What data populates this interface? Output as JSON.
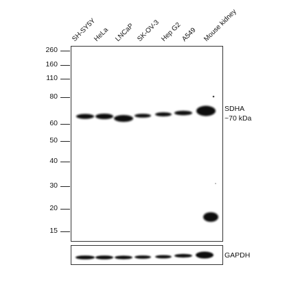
{
  "lanes": [
    "SH-SY5Y",
    "HeLa",
    "LNCaP",
    "SK-OV-3",
    "Hep G2",
    "A549",
    "Mouse kidney"
  ],
  "markers": [
    "260",
    "160",
    "110",
    "80",
    "60",
    "50",
    "40",
    "30",
    "20",
    "15"
  ],
  "target": {
    "name": "SDHA",
    "size": "~70 kDa"
  },
  "loading_control": "GAPDH",
  "colors": {
    "band": "#0d0d0d",
    "background": "#ffffff",
    "border": "#333333"
  }
}
